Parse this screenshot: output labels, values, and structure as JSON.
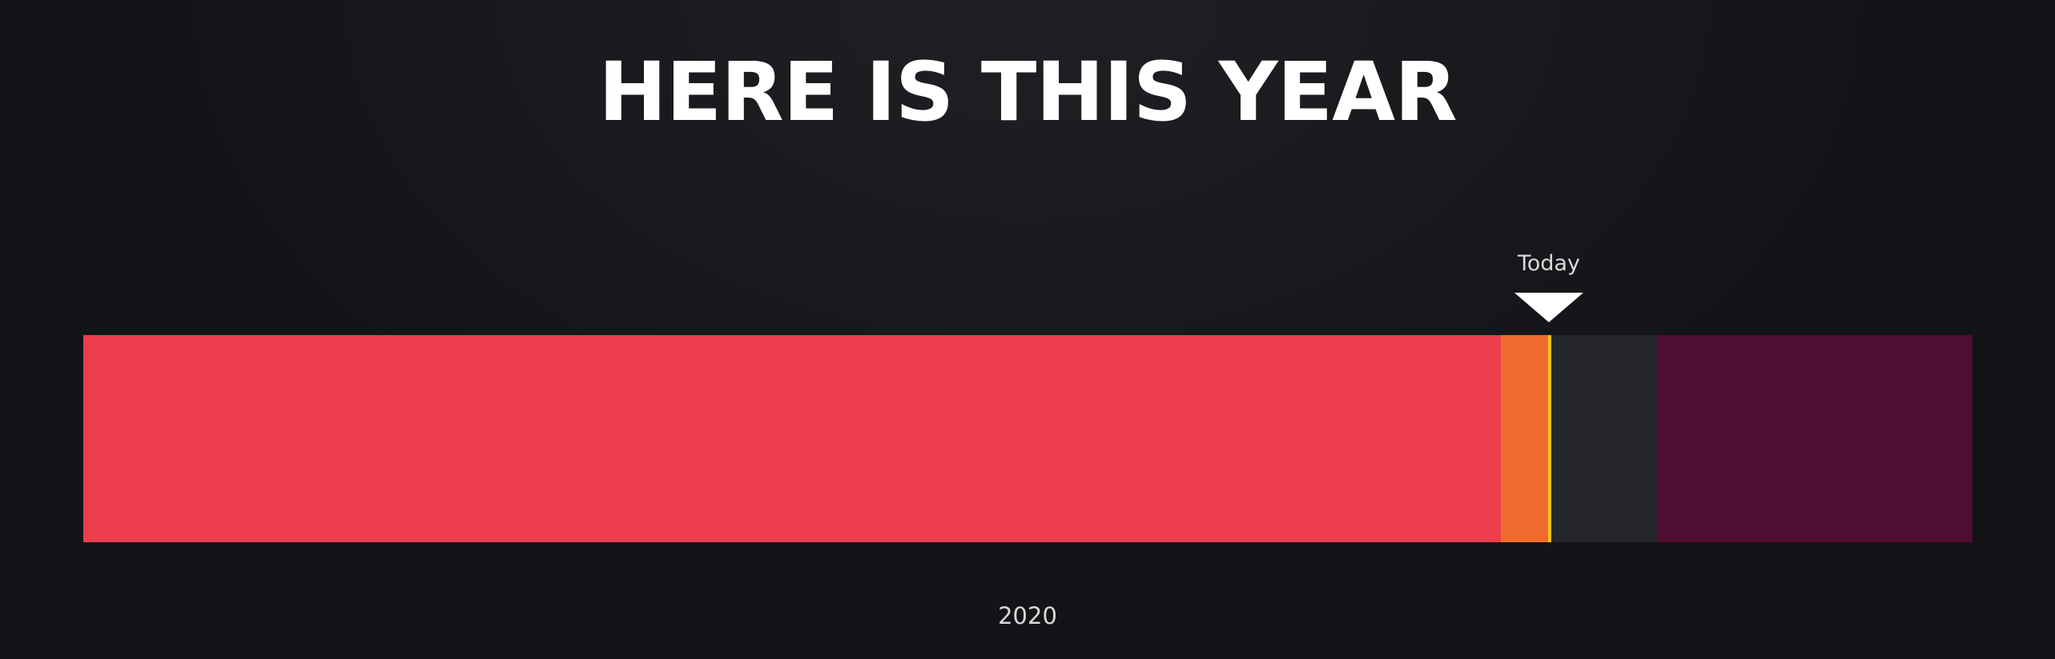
{
  "title": "HERE IS THIS YEAR",
  "today_marker": {
    "label": "Today"
  },
  "year_label": "2020",
  "colors": {
    "background": "#131417",
    "past": "#ec3d4d",
    "recent": "#ef6b2d",
    "today_line": "#f2c417",
    "upcoming": "#24262b",
    "future": "#4f0d31"
  },
  "segments": [
    {
      "name": "past",
      "color": "#ec3d4d"
    },
    {
      "name": "recent",
      "color": "#ef6b2d"
    },
    {
      "name": "today",
      "color": "#f2c417"
    },
    {
      "name": "upcoming",
      "color": "#24262b"
    },
    {
      "name": "future",
      "color": "#4f0d31"
    }
  ]
}
